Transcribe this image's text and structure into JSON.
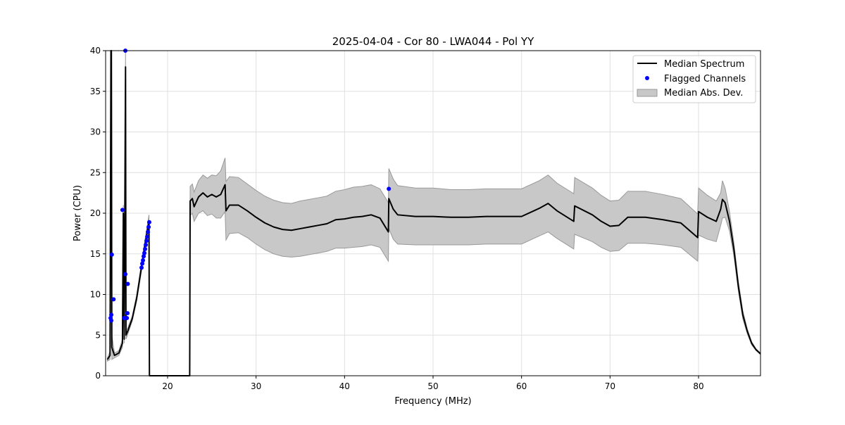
{
  "chart_data": {
    "type": "line",
    "title": "2025-04-04 - Cor 80 - LWA044 - Pol YY",
    "xlabel": "Frequency (MHz)",
    "ylabel": "Power (CPU)",
    "xlim": [
      13.0,
      87.0
    ],
    "ylim": [
      0,
      40
    ],
    "xticks": [
      20,
      30,
      40,
      50,
      60,
      70,
      80
    ],
    "yticks": [
      0,
      5,
      10,
      15,
      20,
      25,
      30,
      35,
      40
    ],
    "grid": true,
    "legend": {
      "placement": "top-right",
      "entries": [
        "Median Spectrum",
        "Flagged Channels",
        "Median Abs. Dev."
      ]
    },
    "colors": {
      "median": "#000000",
      "flagged": "#0000ff",
      "mad": "#c8c8c8",
      "mad_edge": "#999999"
    },
    "series": [
      {
        "name": "Median Spectrum",
        "points_freq_median_mad": [
          [
            13.2,
            2.0,
            0.2
          ],
          [
            13.5,
            2.5,
            0.5
          ],
          [
            13.6,
            40,
            2
          ],
          [
            13.65,
            40,
            2
          ],
          [
            13.7,
            3.5,
            1.5
          ],
          [
            14.0,
            2.5,
            0.3
          ],
          [
            14.5,
            2.8,
            0.3
          ],
          [
            14.9,
            4.0,
            0.5
          ],
          [
            15.0,
            20,
            1
          ],
          [
            15.1,
            4.5,
            0.5
          ],
          [
            15.25,
            38,
            2
          ],
          [
            15.3,
            5.0,
            0.5
          ],
          [
            15.5,
            5.5,
            0.4
          ],
          [
            16.0,
            7.0,
            0.3
          ],
          [
            16.5,
            9.5,
            0.4
          ],
          [
            17.0,
            13.0,
            0.5
          ],
          [
            17.5,
            16.5,
            0.6
          ],
          [
            17.9,
            19.0,
            0.8
          ],
          [
            17.95,
            0,
            0
          ],
          [
            22.5,
            0,
            0
          ],
          [
            22.55,
            21.5,
            1.8
          ],
          [
            22.8,
            21.8,
            1.8
          ],
          [
            23.0,
            20.8,
            1.8
          ],
          [
            23.5,
            22.0,
            2
          ],
          [
            24.0,
            22.5,
            2.2
          ],
          [
            24.5,
            22.0,
            2.3
          ],
          [
            25.0,
            22.3,
            2.4
          ],
          [
            25.5,
            22.0,
            2.6
          ],
          [
            26.0,
            22.3,
            2.9
          ],
          [
            26.5,
            23.5,
            3.3
          ],
          [
            26.6,
            20.3,
            3.6
          ],
          [
            27.0,
            21.0,
            3.5
          ],
          [
            28.0,
            21.0,
            3.4
          ],
          [
            29.0,
            20.3,
            3.3
          ],
          [
            30.0,
            19.5,
            3.3
          ],
          [
            31.0,
            18.8,
            3.3
          ],
          [
            32.0,
            18.3,
            3.3
          ],
          [
            33.0,
            18.0,
            3.3
          ],
          [
            34.0,
            17.9,
            3.3
          ],
          [
            35.0,
            18.1,
            3.4
          ],
          [
            36.0,
            18.3,
            3.4
          ],
          [
            37.0,
            18.5,
            3.4
          ],
          [
            38.0,
            18.7,
            3.4
          ],
          [
            39.0,
            19.2,
            3.5
          ],
          [
            40.0,
            19.3,
            3.6
          ],
          [
            41.0,
            19.5,
            3.7
          ],
          [
            42.0,
            19.6,
            3.7
          ],
          [
            43.0,
            19.8,
            3.7
          ],
          [
            44.0,
            19.4,
            3.6
          ],
          [
            44.95,
            17.7,
            3.6
          ],
          [
            45.0,
            21.8,
            3.7
          ],
          [
            45.5,
            20.5,
            3.7
          ],
          [
            46.0,
            19.8,
            3.6
          ],
          [
            48.0,
            19.6,
            3.5
          ],
          [
            50.0,
            19.6,
            3.5
          ],
          [
            52.0,
            19.5,
            3.4
          ],
          [
            54.0,
            19.5,
            3.4
          ],
          [
            56.0,
            19.6,
            3.4
          ],
          [
            58.0,
            19.6,
            3.4
          ],
          [
            60.0,
            19.6,
            3.4
          ],
          [
            62.0,
            20.6,
            3.4
          ],
          [
            63.0,
            21.2,
            3.5
          ],
          [
            64.0,
            20.3,
            3.4
          ],
          [
            65.9,
            19.0,
            3.4
          ],
          [
            66.0,
            20.9,
            3.5
          ],
          [
            68.0,
            19.8,
            3.3
          ],
          [
            69.0,
            19.0,
            3.2
          ],
          [
            70.0,
            18.4,
            3.1
          ],
          [
            71.0,
            18.5,
            3.1
          ],
          [
            72.0,
            19.5,
            3.2
          ],
          [
            74.0,
            19.5,
            3.2
          ],
          [
            76.0,
            19.2,
            3.1
          ],
          [
            78.0,
            18.8,
            3.0
          ],
          [
            79.9,
            17.0,
            2.9
          ],
          [
            80.0,
            20.2,
            2.9
          ],
          [
            81.0,
            19.5,
            2.7
          ],
          [
            82.0,
            19.0,
            2.5
          ],
          [
            82.5,
            20.5,
            2.0
          ],
          [
            82.7,
            21.7,
            2.3
          ],
          [
            83.0,
            21.3,
            1.8
          ],
          [
            83.5,
            19.0,
            1.2
          ],
          [
            84.0,
            15.5,
            0.8
          ],
          [
            84.5,
            11.0,
            0.6
          ],
          [
            85.0,
            7.5,
            0.5
          ],
          [
            85.5,
            5.5,
            0.3
          ],
          [
            86.0,
            4.0,
            0.2
          ],
          [
            86.5,
            3.2,
            0.1
          ],
          [
            87.0,
            2.7,
            0.1
          ]
        ]
      },
      {
        "name": "Flagged Channels",
        "points": [
          [
            13.56,
            7.1
          ],
          [
            13.64,
            6.8
          ],
          [
            13.64,
            7.5
          ],
          [
            13.7,
            14.9
          ],
          [
            13.9,
            9.4
          ],
          [
            14.9,
            20.4
          ],
          [
            15.23,
            40.0
          ],
          [
            15.23,
            12.5
          ],
          [
            15.1,
            7.1
          ],
          [
            15.4,
            7.1
          ],
          [
            15.5,
            11.3
          ],
          [
            15.47,
            7.7
          ],
          [
            17.06,
            13.3
          ],
          [
            17.14,
            13.8
          ],
          [
            17.22,
            14.2
          ],
          [
            17.3,
            14.7
          ],
          [
            17.38,
            15.1
          ],
          [
            17.46,
            15.6
          ],
          [
            17.54,
            16.1
          ],
          [
            17.62,
            16.6
          ],
          [
            17.7,
            17.1
          ],
          [
            17.78,
            17.7
          ],
          [
            17.86,
            18.3
          ],
          [
            17.93,
            18.9
          ],
          [
            45.0,
            23.0
          ]
        ]
      }
    ]
  }
}
